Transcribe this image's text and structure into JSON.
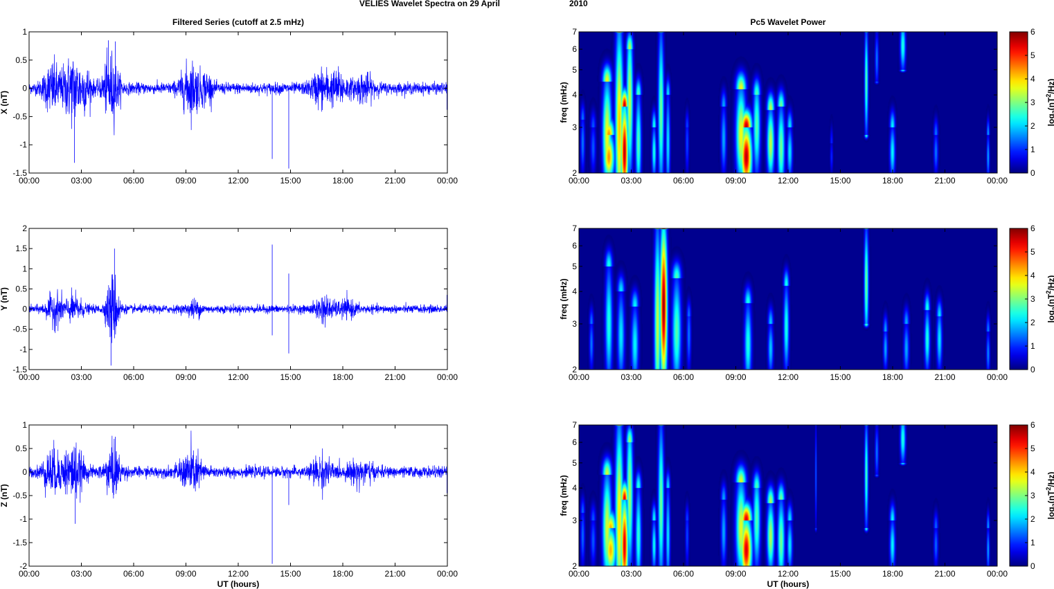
{
  "figure": {
    "title_left": "VELIES Wavelet Spectra on 29 April",
    "title_right": "2010"
  },
  "chart_data": [
    {
      "type": "line",
      "panel": "time-series-x",
      "title": "Filtered Series (cutoff at 2.5 mHz)",
      "xlabel": "",
      "ylabel": "X (nT)",
      "xlim": [
        0,
        24
      ],
      "ylim": [
        -1.5,
        1
      ],
      "x_ticks": [
        "00:00",
        "03:00",
        "06:00",
        "09:00",
        "12:00",
        "15:00",
        "18:00",
        "21:00",
        "00:00"
      ],
      "y_ticks": [
        "-1.5",
        "-1",
        "-0.5",
        "0",
        "0.5",
        "1"
      ],
      "y_tick_values": [
        -1.5,
        -1,
        -0.5,
        0,
        0.5,
        1
      ],
      "line_color": "#0000ff",
      "baseline_amplitude": 0.07,
      "bursts": [
        {
          "t": 1.3,
          "w": 0.5,
          "a": 0.28
        },
        {
          "t": 2.5,
          "w": 0.6,
          "a": 0.38
        },
        {
          "t": 3.3,
          "w": 0.3,
          "a": 0.18
        },
        {
          "t": 4.7,
          "w": 0.45,
          "a": 0.4
        },
        {
          "t": 9.3,
          "w": 0.6,
          "a": 0.3
        },
        {
          "t": 10.2,
          "w": 0.3,
          "a": 0.15
        },
        {
          "t": 16.8,
          "w": 0.6,
          "a": 0.2
        },
        {
          "t": 17.8,
          "w": 0.5,
          "a": 0.16
        },
        {
          "t": 19.2,
          "w": 0.6,
          "a": 0.14
        }
      ],
      "spikes": [
        {
          "t": 2.6,
          "v": -1.32
        },
        {
          "t": 4.55,
          "v": 0.85
        },
        {
          "t": 4.95,
          "v": 0.83
        },
        {
          "t": 13.95,
          "v": -1.25
        },
        {
          "t": 14.9,
          "v": -1.42
        },
        {
          "t": 23.98,
          "v": -0.38
        }
      ]
    },
    {
      "type": "line",
      "panel": "time-series-y",
      "title": "",
      "xlabel": "",
      "ylabel": "Y (nT)",
      "xlim": [
        0,
        24
      ],
      "ylim": [
        -1.5,
        2
      ],
      "x_ticks": [
        "00:00",
        "03:00",
        "06:00",
        "09:00",
        "12:00",
        "15:00",
        "18:00",
        "21:00",
        "00:00"
      ],
      "y_ticks": [
        "-1.5",
        "-1",
        "-0.5",
        "0",
        "0.5",
        "1",
        "1.5",
        "2"
      ],
      "y_tick_values": [
        -1.5,
        -1,
        -0.5,
        0,
        0.5,
        1,
        1.5,
        2
      ],
      "line_color": "#0000ff",
      "baseline_amplitude": 0.07,
      "bursts": [
        {
          "t": 1.5,
          "w": 0.5,
          "a": 0.25
        },
        {
          "t": 2.6,
          "w": 0.5,
          "a": 0.2
        },
        {
          "t": 4.8,
          "w": 0.35,
          "a": 0.6
        },
        {
          "t": 9.5,
          "w": 0.4,
          "a": 0.12
        },
        {
          "t": 16.9,
          "w": 0.5,
          "a": 0.2
        },
        {
          "t": 18.2,
          "w": 0.6,
          "a": 0.12
        }
      ],
      "spikes": [
        {
          "t": 4.9,
          "v": 1.5
        },
        {
          "t": 4.7,
          "v": -1.4
        },
        {
          "t": 13.95,
          "v": 1.6
        },
        {
          "t": 13.95,
          "v": -0.65
        },
        {
          "t": 14.9,
          "v": 0.88
        },
        {
          "t": 14.9,
          "v": -1.1
        },
        {
          "t": 23.98,
          "v": 0.35
        }
      ]
    },
    {
      "type": "line",
      "panel": "time-series-z",
      "title": "",
      "xlabel": "UT (hours)",
      "ylabel": "Z (nT)",
      "xlim": [
        0,
        24
      ],
      "ylim": [
        -2,
        1
      ],
      "x_ticks": [
        "00:00",
        "03:00",
        "06:00",
        "09:00",
        "12:00",
        "15:00",
        "18:00",
        "21:00",
        "00:00"
      ],
      "y_ticks": [
        "-2",
        "-1.5",
        "-1",
        "-0.5",
        "0",
        "0.5",
        "1"
      ],
      "y_tick_values": [
        -2,
        -1.5,
        -1,
        -0.5,
        0,
        0.5,
        1
      ],
      "line_color": "#0000ff",
      "baseline_amplitude": 0.08,
      "bursts": [
        {
          "t": 1.3,
          "w": 0.5,
          "a": 0.3
        },
        {
          "t": 2.5,
          "w": 0.6,
          "a": 0.38
        },
        {
          "t": 4.8,
          "w": 0.45,
          "a": 0.35
        },
        {
          "t": 9.3,
          "w": 0.6,
          "a": 0.3
        },
        {
          "t": 16.8,
          "w": 0.6,
          "a": 0.2
        },
        {
          "t": 19.0,
          "w": 0.7,
          "a": 0.15
        }
      ],
      "spikes": [
        {
          "t": 2.65,
          "v": -1.1
        },
        {
          "t": 4.95,
          "v": 0.75
        },
        {
          "t": 13.95,
          "v": -1.95
        },
        {
          "t": 14.9,
          "v": -0.7
        },
        {
          "t": 23.98,
          "v": -0.45
        }
      ]
    },
    {
      "type": "heatmap",
      "panel": "wavelet-x",
      "title": "Pc5 Wavelet Power",
      "xlabel": "",
      "ylabel": "freq (mHz)",
      "xlim": [
        0,
        24
      ],
      "ylim": [
        2,
        7
      ],
      "yscale": "log",
      "x_ticks": [
        "00:00",
        "03:00",
        "06:00",
        "09:00",
        "12:00",
        "15:00",
        "18:00",
        "21:00",
        "00:00"
      ],
      "y_ticks": [
        "2",
        "3",
        "4",
        "5",
        "6",
        "7"
      ],
      "y_tick_values": [
        2,
        3,
        4,
        5,
        6,
        7
      ],
      "colorbar": {
        "label_base": "log",
        "label_sub": "2",
        "label_open": "(nT",
        "label_sup": "2",
        "label_close": "/Hz)",
        "ticks": [
          "0",
          "1",
          "2",
          "3",
          "4",
          "5",
          "6"
        ],
        "range": [
          0,
          6
        ],
        "colormap": "jet"
      },
      "blobs": [
        {
          "t": 0.2,
          "f": 2.6,
          "w": 0.12,
          "f0": 2.0,
          "f1": 3.2,
          "p": 1.5
        },
        {
          "t": 0.8,
          "f": 2.5,
          "w": 0.15,
          "f0": 2.0,
          "f1": 3.0,
          "p": 1.3
        },
        {
          "t": 1.6,
          "f": 2.8,
          "w": 0.25,
          "f0": 2.0,
          "f1": 4.5,
          "p": 3.8
        },
        {
          "t": 1.7,
          "f": 2.3,
          "w": 0.3,
          "f0": 2.0,
          "f1": 2.8,
          "p": 4.5
        },
        {
          "t": 2.3,
          "f": 3.0,
          "w": 0.22,
          "f0": 2.0,
          "f1": 7.0,
          "p": 4.2
        },
        {
          "t": 2.6,
          "f": 2.4,
          "w": 0.2,
          "f0": 2.0,
          "f1": 3.6,
          "p": 5.8
        },
        {
          "t": 2.9,
          "f": 3.8,
          "w": 0.18,
          "f0": 2.0,
          "f1": 6.0,
          "p": 3.5
        },
        {
          "t": 3.4,
          "f": 2.6,
          "w": 0.16,
          "f0": 2.0,
          "f1": 4.0,
          "p": 2.8
        },
        {
          "t": 4.3,
          "f": 2.4,
          "w": 0.12,
          "f0": 2.0,
          "f1": 3.0,
          "p": 2.5
        },
        {
          "t": 4.7,
          "f": 3.5,
          "w": 0.16,
          "f0": 2.0,
          "f1": 7.0,
          "p": 3.0
        },
        {
          "t": 5.1,
          "f": 2.6,
          "w": 0.12,
          "f0": 2.0,
          "f1": 4.0,
          "p": 2.2
        },
        {
          "t": 6.2,
          "f": 2.6,
          "w": 0.1,
          "f0": 2.0,
          "f1": 3.0,
          "p": 1.2
        },
        {
          "t": 8.3,
          "f": 2.7,
          "w": 0.15,
          "f0": 2.0,
          "f1": 3.6,
          "p": 1.8
        },
        {
          "t": 9.3,
          "f": 2.8,
          "w": 0.28,
          "f0": 2.0,
          "f1": 4.2,
          "p": 3.8
        },
        {
          "t": 9.6,
          "f": 2.3,
          "w": 0.3,
          "f0": 2.0,
          "f1": 3.0,
          "p": 5.8
        },
        {
          "t": 10.2,
          "f": 3.0,
          "w": 0.2,
          "f0": 2.0,
          "f1": 4.0,
          "p": 2.8
        },
        {
          "t": 11.0,
          "f": 2.6,
          "w": 0.2,
          "f0": 2.0,
          "f1": 3.5,
          "p": 3.5
        },
        {
          "t": 11.6,
          "f": 2.5,
          "w": 0.2,
          "f0": 2.0,
          "f1": 3.6,
          "p": 3.0
        },
        {
          "t": 12.1,
          "f": 2.4,
          "w": 0.15,
          "f0": 2.0,
          "f1": 3.0,
          "p": 2.2
        },
        {
          "t": 14.5,
          "f": 2.3,
          "w": 0.08,
          "f0": 2.0,
          "f1": 2.6,
          "p": 1.0
        },
        {
          "t": 16.5,
          "f": 4.5,
          "w": 0.1,
          "f0": 2.8,
          "f1": 7.0,
          "p": 2.8
        },
        {
          "t": 17.1,
          "f": 5.5,
          "w": 0.1,
          "f0": 4.5,
          "f1": 7.0,
          "p": 1.5
        },
        {
          "t": 18.0,
          "f": 2.4,
          "w": 0.15,
          "f0": 2.0,
          "f1": 3.0,
          "p": 2.3
        },
        {
          "t": 18.6,
          "f": 6.2,
          "w": 0.15,
          "f0": 5.0,
          "f1": 7.0,
          "p": 2.5
        },
        {
          "t": 20.5,
          "f": 2.4,
          "w": 0.12,
          "f0": 2.0,
          "f1": 2.8,
          "p": 1.5
        },
        {
          "t": 23.5,
          "f": 2.3,
          "w": 0.08,
          "f0": 2.0,
          "f1": 2.8,
          "p": 1.8
        }
      ]
    },
    {
      "type": "heatmap",
      "panel": "wavelet-y",
      "title": "",
      "xlabel": "",
      "ylabel": "freq (mHz)",
      "xlim": [
        0,
        24
      ],
      "ylim": [
        2,
        7
      ],
      "yscale": "log",
      "x_ticks": [
        "00:00",
        "03:00",
        "06:00",
        "09:00",
        "12:00",
        "15:00",
        "18:00",
        "21:00",
        "00:00"
      ],
      "y_ticks": [
        "2",
        "3",
        "4",
        "5",
        "6",
        "7"
      ],
      "y_tick_values": [
        2,
        3,
        4,
        5,
        6,
        7
      ],
      "colorbar": {
        "label_base": "log",
        "label_sub": "2",
        "label_open": "(nT",
        "label_sup": "2",
        "label_close": "/Hz)",
        "ticks": [
          "0",
          "1",
          "2",
          "3",
          "4",
          "5",
          "6"
        ],
        "range": [
          0,
          6
        ],
        "colormap": "jet"
      },
      "blobs": [
        {
          "t": 0.7,
          "f": 2.5,
          "w": 0.12,
          "f0": 2.0,
          "f1": 3.0,
          "p": 1.5
        },
        {
          "t": 1.7,
          "f": 3.0,
          "w": 0.2,
          "f0": 2.0,
          "f1": 5.0,
          "p": 2.5
        },
        {
          "t": 2.4,
          "f": 2.7,
          "w": 0.2,
          "f0": 2.0,
          "f1": 4.0,
          "p": 2.2
        },
        {
          "t": 3.2,
          "f": 2.5,
          "w": 0.2,
          "f0": 2.0,
          "f1": 3.5,
          "p": 2.3
        },
        {
          "t": 4.5,
          "f": 3.0,
          "w": 0.18,
          "f0": 2.0,
          "f1": 7.0,
          "p": 3.5
        },
        {
          "t": 4.85,
          "f": 3.5,
          "w": 0.2,
          "f0": 2.0,
          "f1": 7.0,
          "p": 6.0
        },
        {
          "t": 5.6,
          "f": 2.8,
          "w": 0.25,
          "f0": 2.0,
          "f1": 4.5,
          "p": 2.8
        },
        {
          "t": 6.3,
          "f": 2.7,
          "w": 0.12,
          "f0": 2.0,
          "f1": 3.2,
          "p": 1.5
        },
        {
          "t": 9.7,
          "f": 2.5,
          "w": 0.2,
          "f0": 2.0,
          "f1": 3.6,
          "p": 2.5
        },
        {
          "t": 11.0,
          "f": 2.4,
          "w": 0.15,
          "f0": 2.0,
          "f1": 3.0,
          "p": 2.0
        },
        {
          "t": 11.9,
          "f": 2.9,
          "w": 0.15,
          "f0": 2.0,
          "f1": 4.2,
          "p": 2.5
        },
        {
          "t": 16.5,
          "f": 4.3,
          "w": 0.12,
          "f0": 3.0,
          "f1": 7.0,
          "p": 3.0
        },
        {
          "t": 17.6,
          "f": 2.4,
          "w": 0.12,
          "f0": 2.0,
          "f1": 2.8,
          "p": 1.8
        },
        {
          "t": 18.8,
          "f": 2.4,
          "w": 0.15,
          "f0": 2.0,
          "f1": 3.0,
          "p": 1.8
        },
        {
          "t": 20.0,
          "f": 2.6,
          "w": 0.15,
          "f0": 2.0,
          "f1": 3.4,
          "p": 2.5
        },
        {
          "t": 20.7,
          "f": 2.6,
          "w": 0.15,
          "f0": 2.0,
          "f1": 3.2,
          "p": 2.2
        },
        {
          "t": 23.5,
          "f": 2.3,
          "w": 0.1,
          "f0": 2.0,
          "f1": 2.8,
          "p": 1.6
        }
      ]
    },
    {
      "type": "heatmap",
      "panel": "wavelet-z",
      "title": "",
      "xlabel": "UT (hours)",
      "ylabel": "freq (mHz)",
      "xlim": [
        0,
        24
      ],
      "ylim": [
        2,
        7
      ],
      "yscale": "log",
      "x_ticks": [
        "00:00",
        "03:00",
        "06:00",
        "09:00",
        "12:00",
        "15:00",
        "18:00",
        "21:00",
        "00:00"
      ],
      "y_ticks": [
        "2",
        "3",
        "4",
        "5",
        "6",
        "7"
      ],
      "y_tick_values": [
        2,
        3,
        4,
        5,
        6,
        7
      ],
      "colorbar": {
        "label_base": "log",
        "label_sub": "2",
        "label_open": "(nT",
        "label_sup": "2",
        "label_close": "/Hz)",
        "ticks": [
          "0",
          "1",
          "2",
          "3",
          "4",
          "5",
          "6"
        ],
        "range": [
          0,
          6
        ],
        "colormap": "jet"
      },
      "blobs": [
        {
          "t": 0.2,
          "f": 2.6,
          "w": 0.12,
          "f0": 2.0,
          "f1": 3.2,
          "p": 1.4
        },
        {
          "t": 0.8,
          "f": 2.5,
          "w": 0.15,
          "f0": 2.0,
          "f1": 3.0,
          "p": 1.3
        },
        {
          "t": 1.6,
          "f": 2.8,
          "w": 0.25,
          "f0": 2.0,
          "f1": 4.5,
          "p": 3.6
        },
        {
          "t": 1.8,
          "f": 2.3,
          "w": 0.3,
          "f0": 2.0,
          "f1": 2.8,
          "p": 4.3
        },
        {
          "t": 2.3,
          "f": 3.0,
          "w": 0.22,
          "f0": 2.0,
          "f1": 7.0,
          "p": 4.0
        },
        {
          "t": 2.6,
          "f": 2.4,
          "w": 0.2,
          "f0": 2.0,
          "f1": 3.6,
          "p": 5.6
        },
        {
          "t": 2.9,
          "f": 3.8,
          "w": 0.18,
          "f0": 2.0,
          "f1": 6.0,
          "p": 3.3
        },
        {
          "t": 3.4,
          "f": 2.6,
          "w": 0.16,
          "f0": 2.0,
          "f1": 4.0,
          "p": 2.6
        },
        {
          "t": 4.3,
          "f": 2.4,
          "w": 0.12,
          "f0": 2.0,
          "f1": 3.0,
          "p": 2.4
        },
        {
          "t": 4.7,
          "f": 3.5,
          "w": 0.16,
          "f0": 2.0,
          "f1": 7.0,
          "p": 3.0
        },
        {
          "t": 5.1,
          "f": 2.6,
          "w": 0.12,
          "f0": 2.0,
          "f1": 4.0,
          "p": 2.2
        },
        {
          "t": 6.2,
          "f": 2.6,
          "w": 0.1,
          "f0": 2.0,
          "f1": 3.0,
          "p": 1.2
        },
        {
          "t": 8.3,
          "f": 2.7,
          "w": 0.15,
          "f0": 2.0,
          "f1": 3.6,
          "p": 1.8
        },
        {
          "t": 9.3,
          "f": 2.8,
          "w": 0.28,
          "f0": 2.0,
          "f1": 4.2,
          "p": 3.7
        },
        {
          "t": 9.6,
          "f": 2.3,
          "w": 0.3,
          "f0": 2.0,
          "f1": 3.0,
          "p": 5.6
        },
        {
          "t": 10.2,
          "f": 3.0,
          "w": 0.2,
          "f0": 2.0,
          "f1": 4.0,
          "p": 2.8
        },
        {
          "t": 11.0,
          "f": 2.6,
          "w": 0.2,
          "f0": 2.0,
          "f1": 3.5,
          "p": 3.4
        },
        {
          "t": 11.6,
          "f": 2.5,
          "w": 0.2,
          "f0": 2.0,
          "f1": 3.6,
          "p": 3.0
        },
        {
          "t": 12.1,
          "f": 2.4,
          "w": 0.15,
          "f0": 2.0,
          "f1": 3.0,
          "p": 2.2
        },
        {
          "t": 13.6,
          "f": 4.5,
          "w": 0.05,
          "f0": 2.8,
          "f1": 7.0,
          "p": 1.4
        },
        {
          "t": 16.5,
          "f": 4.5,
          "w": 0.1,
          "f0": 2.8,
          "f1": 7.0,
          "p": 2.7
        },
        {
          "t": 17.1,
          "f": 5.5,
          "w": 0.1,
          "f0": 4.5,
          "f1": 7.0,
          "p": 1.5
        },
        {
          "t": 18.0,
          "f": 2.4,
          "w": 0.15,
          "f0": 2.0,
          "f1": 3.0,
          "p": 2.3
        },
        {
          "t": 18.6,
          "f": 6.2,
          "w": 0.15,
          "f0": 5.0,
          "f1": 7.0,
          "p": 2.5
        },
        {
          "t": 20.5,
          "f": 2.4,
          "w": 0.12,
          "f0": 2.0,
          "f1": 2.8,
          "p": 1.4
        },
        {
          "t": 23.5,
          "f": 2.3,
          "w": 0.08,
          "f0": 2.0,
          "f1": 2.8,
          "p": 1.8
        }
      ]
    }
  ]
}
